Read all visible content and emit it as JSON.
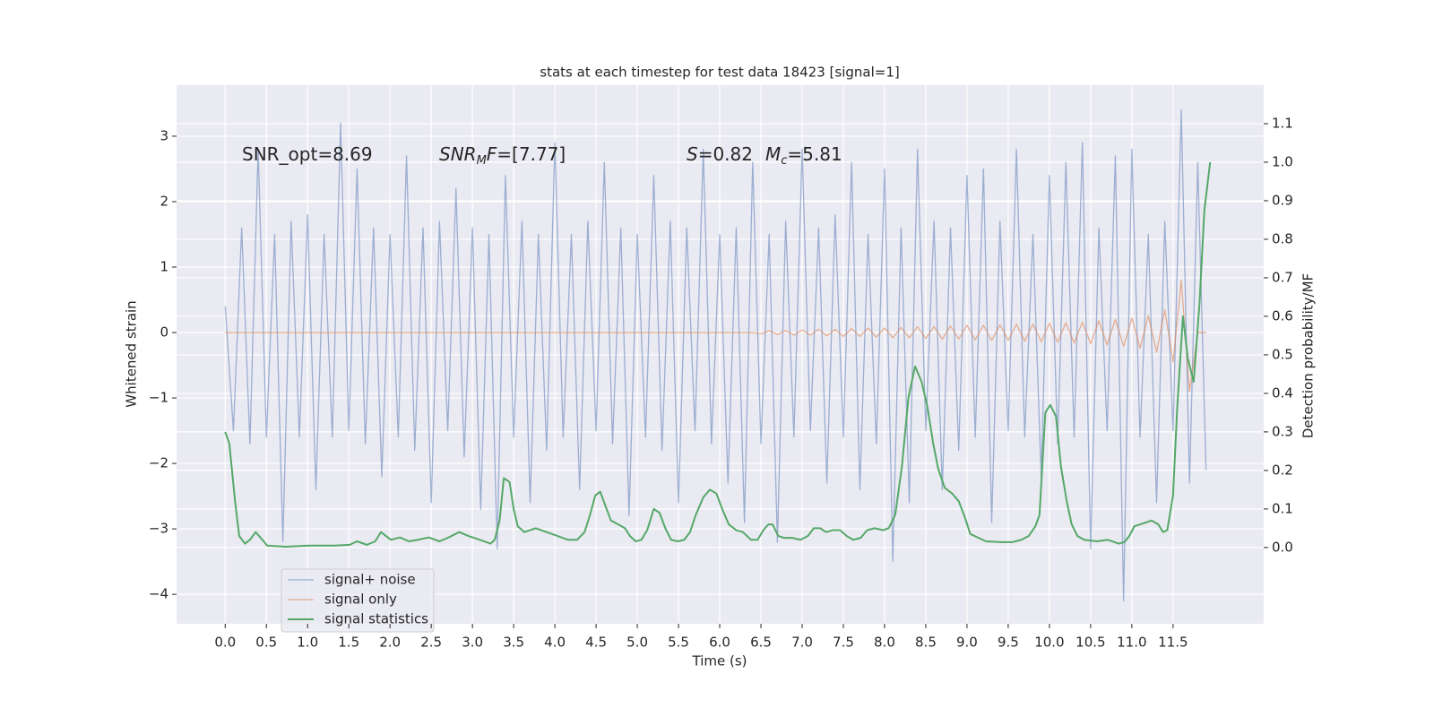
{
  "chart_data": {
    "type": "line",
    "title": "stats at each timestep for test data 18423 [signal=1]",
    "xlabel": "Time (s)",
    "ylabel": "Whitened strain",
    "y2label": "Detection probability/MF",
    "annotations": [
      [
        "SNR_opt=8.69"
      ],
      [
        "SNR",
        "M",
        "F",
        "=[7.77]"
      ],
      [
        "S",
        "=0.82",
        "M",
        "c",
        "=5.81"
      ]
    ],
    "grid": true,
    "legend": "lower left",
    "xlim": [
      -0.59,
      12.6
    ],
    "ylim": [
      -4.45,
      3.78
    ],
    "y2lim": [
      -0.198,
      1.2
    ],
    "xticks": [
      {
        "value": 0,
        "label": "0.0"
      },
      0.5,
      {
        "value": 1,
        "label": "1.0"
      },
      1.5,
      {
        "value": 2,
        "label": "2.0"
      },
      2.5,
      {
        "value": 3,
        "label": "3.0"
      },
      3.5,
      {
        "value": 4,
        "label": "4.0"
      },
      4.5,
      {
        "value": 5,
        "label": "5.0"
      },
      5.5,
      {
        "value": 6,
        "label": "6.0"
      },
      6.5,
      {
        "value": 7,
        "label": "7.0"
      },
      7.5,
      {
        "value": 8,
        "label": "8.0"
      },
      8.5,
      {
        "value": 9,
        "label": "9.0"
      },
      9.5,
      {
        "value": 10,
        "label": "10.0"
      },
      10.5,
      {
        "value": 11,
        "label": "11.0"
      },
      11.5
    ],
    "yticks": [
      {
        "value": -4,
        "label": "−4"
      },
      {
        "value": -3,
        "label": "−3"
      },
      {
        "value": -2,
        "label": "−2"
      },
      {
        "value": -1,
        "label": "−1"
      },
      0,
      1,
      2,
      3
    ],
    "y2ticks": [
      {
        "value": 0,
        "label": "0.0"
      },
      0.1,
      0.2,
      0.3,
      0.4,
      0.5,
      0.6,
      0.7,
      0.8,
      0.9,
      {
        "value": 1,
        "label": "1.0"
      },
      1.1
    ],
    "x": [
      0.0,
      0.1,
      0.2,
      0.3,
      0.4,
      0.5,
      0.6,
      0.7,
      0.8,
      0.9,
      1.0,
      1.1,
      1.2,
      1.3,
      1.4,
      1.5,
      1.6,
      1.7,
      1.8,
      1.9,
      2.0,
      2.1,
      2.2,
      2.3,
      2.4,
      2.5,
      2.6,
      2.7,
      2.8,
      2.9,
      3.0,
      3.1,
      3.2,
      3.3,
      3.4,
      3.5,
      3.6,
      3.7,
      3.8,
      3.9,
      4.0,
      4.1,
      4.2,
      4.3,
      4.4,
      4.5,
      4.6,
      4.7,
      4.8,
      4.9,
      5.0,
      5.1,
      5.2,
      5.3,
      5.4,
      5.5,
      5.6,
      5.7,
      5.8,
      5.9,
      6.0,
      6.1,
      6.2,
      6.3,
      6.4,
      6.5,
      6.6,
      6.7,
      6.8,
      6.9,
      7.0,
      7.1,
      7.2,
      7.3,
      7.4,
      7.5,
      7.6,
      7.7,
      7.8,
      7.9,
      8.0,
      8.1,
      8.2,
      8.3,
      8.4,
      8.5,
      8.6,
      8.7,
      8.8,
      8.9,
      9.0,
      9.1,
      9.2,
      9.3,
      9.4,
      9.5,
      9.6,
      9.7,
      9.8,
      9.9,
      10.0,
      10.1,
      10.2,
      10.3,
      10.4,
      10.5,
      10.6,
      10.7,
      10.8,
      10.9,
      11.0,
      11.1,
      11.2,
      11.3,
      11.4,
      11.5,
      11.6,
      11.7,
      11.8,
      11.9
    ],
    "series": [
      {
        "name": "signal+ noise",
        "color": "#4c72b0",
        "values": [
          0.4,
          -1.5,
          1.6,
          -1.7,
          2.8,
          -1.6,
          1.5,
          -3.2,
          1.7,
          -1.6,
          1.8,
          -2.4,
          1.5,
          -1.6,
          3.2,
          -1.5,
          2.5,
          -1.7,
          1.6,
          -2.2,
          1.5,
          -1.6,
          2.7,
          -1.8,
          1.6,
          -2.6,
          1.7,
          -1.5,
          2.2,
          -1.9,
          1.6,
          -2.7,
          1.5,
          -3.3,
          2.4,
          -1.6,
          1.7,
          -2.6,
          1.5,
          -1.8,
          2.9,
          -1.6,
          1.5,
          -2.4,
          1.7,
          -1.5,
          2.6,
          -1.7,
          1.6,
          -2.8,
          1.5,
          -1.6,
          2.4,
          -1.8,
          1.7,
          -2.6,
          1.6,
          -1.5,
          2.8,
          -1.7,
          1.5,
          -2.3,
          1.6,
          -2.9,
          2.6,
          -1.7,
          1.5,
          -3.2,
          1.7,
          -1.6,
          2.8,
          -1.5,
          1.6,
          -2.3,
          1.8,
          -1.6,
          2.6,
          -2.4,
          1.5,
          -1.7,
          2.5,
          -3.5,
          1.6,
          -2.6,
          2.8,
          -1.5,
          1.7,
          -2.4,
          1.6,
          -1.8,
          2.4,
          -1.6,
          2.5,
          -2.9,
          1.7,
          -1.5,
          2.8,
          -1.6,
          1.5,
          -2.2,
          2.4,
          -1.7,
          2.6,
          -1.6,
          2.9,
          -3.3,
          1.6,
          -1.5,
          2.7,
          -4.1,
          2.8,
          -1.6,
          1.5,
          -2.6,
          1.7,
          -1.5,
          3.4,
          -2.3,
          2.6,
          -2.1
        ]
      },
      {
        "name": "signal only",
        "color": "#dd8452",
        "values": [
          0,
          0,
          0,
          0,
          0,
          0,
          0,
          0,
          0,
          0,
          0,
          0,
          0,
          0,
          0,
          0,
          0,
          0,
          0,
          0,
          0,
          0,
          0,
          0,
          0,
          0,
          0,
          0,
          0,
          0,
          0,
          0,
          0,
          0,
          0,
          0,
          0,
          0,
          0,
          0,
          0,
          0,
          0,
          0,
          0,
          0,
          0,
          0,
          0,
          0,
          0,
          0,
          0,
          0,
          0,
          0,
          0,
          0,
          0,
          0,
          0,
          0,
          0,
          0,
          0,
          -0.02,
          0.03,
          -0.03,
          0.03,
          -0.04,
          0.04,
          -0.04,
          0.05,
          -0.05,
          0.05,
          -0.06,
          0.06,
          -0.06,
          0.07,
          -0.07,
          0.07,
          -0.08,
          0.08,
          -0.08,
          0.09,
          -0.09,
          0.09,
          -0.1,
          0.1,
          -0.1,
          0.11,
          -0.11,
          0.11,
          -0.12,
          0.12,
          -0.12,
          0.13,
          -0.13,
          0.13,
          -0.14,
          0.14,
          -0.15,
          0.15,
          -0.16,
          0.16,
          -0.17,
          0.18,
          -0.19,
          0.2,
          -0.21,
          0.22,
          -0.24,
          0.26,
          -0.3,
          0.35,
          -0.45,
          0.8,
          -0.9,
          0,
          0
        ]
      },
      {
        "name": "signal statistics",
        "color": "#55a868",
        "axis": "y2",
        "x": [
          0.0,
          0.05,
          0.12,
          0.17,
          0.24,
          0.3,
          0.37,
          0.45,
          0.51,
          0.73,
          1.02,
          1.33,
          1.51,
          1.6,
          1.72,
          1.82,
          1.89,
          2.01,
          2.12,
          2.23,
          2.34,
          2.47,
          2.6,
          2.71,
          2.84,
          2.95,
          3.09,
          3.22,
          3.27,
          3.33,
          3.38,
          3.45,
          3.5,
          3.55,
          3.63,
          3.77,
          3.9,
          4.03,
          4.16,
          4.27,
          4.36,
          4.42,
          4.49,
          4.55,
          4.61,
          4.68,
          4.77,
          4.85,
          4.91,
          4.98,
          5.05,
          5.12,
          5.2,
          5.27,
          5.34,
          5.41,
          5.49,
          5.57,
          5.64,
          5.71,
          5.8,
          5.88,
          5.96,
          6.03,
          6.11,
          6.2,
          6.28,
          6.38,
          6.46,
          6.53,
          6.59,
          6.64,
          6.71,
          6.78,
          6.88,
          6.98,
          7.07,
          7.14,
          7.22,
          7.29,
          7.37,
          7.46,
          7.54,
          7.62,
          7.71,
          7.79,
          7.88,
          7.98,
          8.05,
          8.13,
          8.21,
          8.29,
          8.37,
          8.45,
          8.52,
          8.59,
          8.65,
          8.73,
          8.82,
          8.9,
          8.98,
          9.04,
          9.14,
          9.23,
          9.42,
          9.55,
          9.66,
          9.75,
          9.83,
          9.88,
          9.95,
          10.01,
          10.08,
          10.14,
          10.21,
          10.27,
          10.34,
          10.42,
          10.58,
          10.71,
          10.84,
          10.91,
          10.97,
          11.03,
          11.1,
          11.17,
          11.24,
          11.32,
          11.38,
          11.43,
          11.5,
          11.55,
          11.62,
          11.68,
          11.75,
          11.82,
          11.88,
          11.95
        ],
        "values": [
          0.3,
          0.27,
          0.12,
          0.03,
          0.01,
          0.02,
          0.04,
          0.02,
          0.005,
          0.002,
          0.005,
          0.005,
          0.007,
          0.016,
          0.007,
          0.016,
          0.04,
          0.02,
          0.026,
          0.016,
          0.02,
          0.026,
          0.016,
          0.026,
          0.04,
          0.03,
          0.02,
          0.01,
          0.02,
          0.07,
          0.18,
          0.17,
          0.1,
          0.055,
          0.04,
          0.05,
          0.04,
          0.03,
          0.02,
          0.02,
          0.04,
          0.08,
          0.135,
          0.145,
          0.11,
          0.07,
          0.06,
          0.05,
          0.03,
          0.016,
          0.02,
          0.045,
          0.1,
          0.09,
          0.05,
          0.02,
          0.016,
          0.02,
          0.04,
          0.085,
          0.13,
          0.15,
          0.14,
          0.1,
          0.06,
          0.045,
          0.04,
          0.02,
          0.02,
          0.045,
          0.06,
          0.06,
          0.03,
          0.025,
          0.025,
          0.02,
          0.03,
          0.05,
          0.05,
          0.04,
          0.045,
          0.045,
          0.03,
          0.02,
          0.025,
          0.045,
          0.05,
          0.045,
          0.05,
          0.085,
          0.21,
          0.39,
          0.47,
          0.43,
          0.365,
          0.27,
          0.205,
          0.155,
          0.14,
          0.12,
          0.075,
          0.035,
          0.025,
          0.016,
          0.014,
          0.014,
          0.02,
          0.03,
          0.055,
          0.085,
          0.35,
          0.37,
          0.34,
          0.21,
          0.12,
          0.06,
          0.03,
          0.02,
          0.016,
          0.02,
          0.01,
          0.014,
          0.03,
          0.055,
          0.06,
          0.065,
          0.07,
          0.06,
          0.04,
          0.045,
          0.135,
          0.36,
          0.6,
          0.49,
          0.43,
          0.63,
          0.875,
          1.0
        ]
      }
    ]
  }
}
